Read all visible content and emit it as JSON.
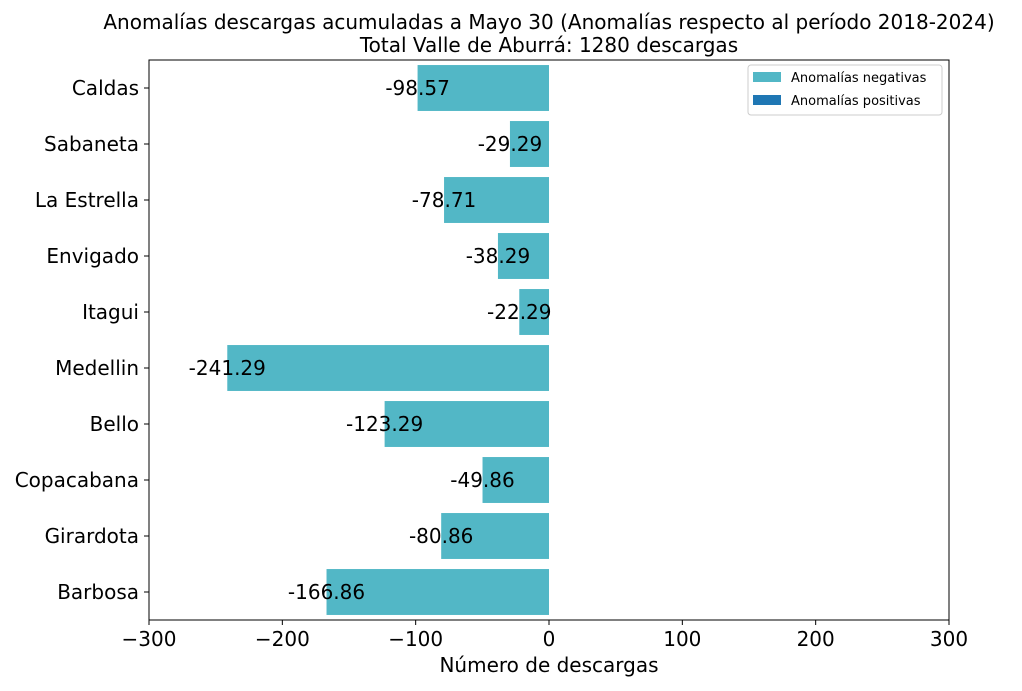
{
  "chart_data": {
    "type": "bar",
    "orientation": "horizontal",
    "title_line1": "Anomalías descargas acumuladas a Mayo 30 (Anomalías respecto al período 2018-2024)",
    "title_line2": "Total Valle de Aburrá: 1280 descargas",
    "xlabel": "Número de descargas",
    "ylabel": "",
    "xlim": [
      -300,
      300
    ],
    "x_ticks": [
      -300,
      -200,
      -100,
      0,
      100,
      200,
      300
    ],
    "x_tick_labels": [
      "−300",
      "−200",
      "−100",
      "0",
      "100",
      "200",
      "300"
    ],
    "grid": false,
    "legend_position": "top-right",
    "legend": [
      {
        "label": "Anomalías negativas",
        "color": "#52b7c6"
      },
      {
        "label": "Anomalías positivas",
        "color": "#1f77b4"
      }
    ],
    "categories": [
      "Caldas",
      "Sabaneta",
      "La Estrella",
      "Envigado",
      "Itagui",
      "Medellin",
      "Bello",
      "Copacabana",
      "Girardota",
      "Barbosa"
    ],
    "values": [
      -98.57,
      -29.29,
      -78.71,
      -38.29,
      -22.29,
      -241.29,
      -123.29,
      -49.86,
      -80.86,
      -166.86
    ],
    "value_labels": [
      "-98.57",
      "-29.29",
      "-78.71",
      "-38.29",
      "-22.29",
      "-241.29",
      "-123.29",
      "-49.86",
      "-80.86",
      "-166.86"
    ],
    "colors": {
      "negative": "#52b7c6",
      "positive": "#1f77b4"
    }
  }
}
